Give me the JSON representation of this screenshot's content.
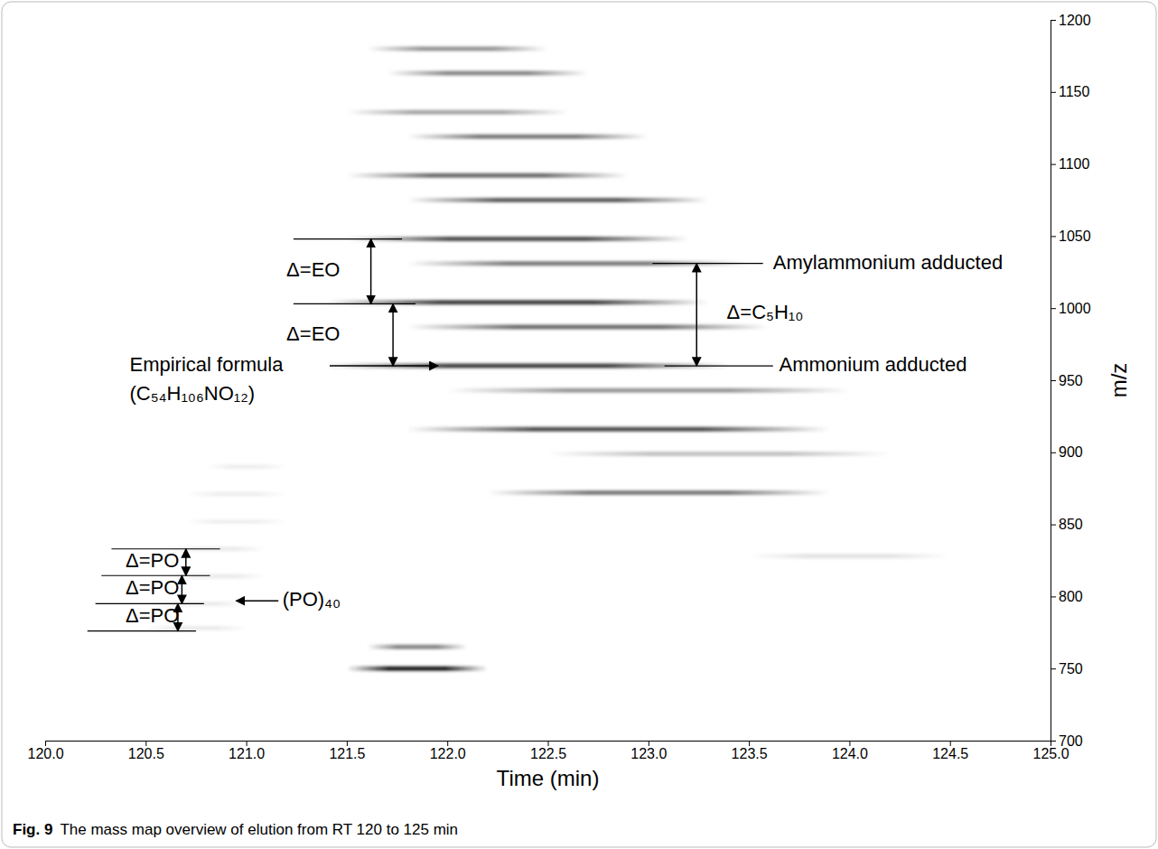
{
  "chart_data": {
    "type": "heatmap",
    "figure_label": "Fig. 9",
    "title": "The mass map overview of elution from RT 120 to 125 min",
    "xlabel": "Time (min)",
    "ylabel": "m/z",
    "xlim": [
      120,
      125
    ],
    "ylim": [
      700,
      1200
    ],
    "xticks": [
      {
        "value": 120,
        "label": "120.0"
      },
      {
        "value": 120.5,
        "label": "120.5"
      },
      {
        "value": 121,
        "label": "121.0"
      },
      {
        "value": 121.5,
        "label": "121.5"
      },
      {
        "value": 122,
        "label": "122.0"
      },
      {
        "value": 122.5,
        "label": "122.5"
      },
      {
        "value": 123,
        "label": "123.0"
      },
      {
        "value": 123.5,
        "label": "123.5"
      },
      {
        "value": 124,
        "label": "124.0"
      },
      {
        "value": 124.5,
        "label": "124.5"
      },
      {
        "value": 125,
        "label": "125.0"
      }
    ],
    "yticks": [
      700,
      750,
      800,
      850,
      900,
      950,
      1000,
      1050,
      1100,
      1150,
      1200
    ],
    "intensity_lim": [
      0,
      1
    ],
    "streaks": {
      "mz": [
        1180,
        1163,
        1136,
        1119,
        1092,
        1075,
        1048,
        1031,
        1004,
        987,
        960,
        943,
        916,
        899,
        872,
        828,
        765,
        750,
        778,
        795,
        814,
        833,
        852,
        871,
        890
      ],
      "rt_start": [
        121.6,
        121.7,
        121.5,
        121.8,
        121.5,
        121.8,
        121.5,
        121.8,
        121.4,
        121.8,
        121.4,
        122.0,
        121.8,
        122.5,
        122.2,
        123.5,
        121.6,
        121.5,
        120.5,
        120.5,
        120.6,
        120.6,
        120.7,
        120.7,
        120.8
      ],
      "rt_end": [
        122.5,
        122.7,
        122.6,
        123.0,
        122.9,
        123.3,
        123.2,
        123.5,
        123.3,
        123.6,
        123.4,
        124.0,
        123.9,
        124.2,
        123.9,
        124.5,
        122.1,
        122.2,
        121.0,
        121.0,
        121.1,
        121.1,
        121.2,
        121.2,
        121.2
      ],
      "intensity": [
        0.5,
        0.55,
        0.45,
        0.6,
        0.65,
        0.7,
        0.75,
        0.6,
        0.8,
        0.65,
        0.8,
        0.5,
        0.75,
        0.35,
        0.6,
        0.2,
        0.55,
        0.9,
        0.15,
        0.15,
        0.15,
        0.15,
        0.12,
        0.12,
        0.12
      ]
    },
    "reference_lines": [
      {
        "x": [
          121.235,
          121.775
        ],
        "y": 1048
      },
      {
        "x": [
          121.235,
          121.842
        ],
        "y": 1003
      },
      {
        "x": [
          123.02,
          123.57
        ],
        "y": 1031
      },
      {
        "x": [
          123.08,
          123.62
        ],
        "y": 960
      },
      {
        "x": [
          120.33,
          120.87
        ],
        "y": 833
      },
      {
        "x": [
          120.28,
          120.82
        ],
        "y": 814.5
      },
      {
        "x": [
          120.25,
          120.79
        ],
        "y": 795
      },
      {
        "x": [
          120.21,
          120.75
        ],
        "y": 776
      }
    ],
    "arrows": [
      {
        "x": 121.62,
        "y": [
          1048,
          1003
        ]
      },
      {
        "x": 121.73,
        "y": [
          1003,
          960
        ]
      },
      {
        "x": 123.24,
        "y": [
          1031,
          960
        ]
      },
      {
        "x": 120.7,
        "y": [
          833,
          814.5
        ]
      },
      {
        "x": 120.68,
        "y": [
          814.5,
          795
        ]
      },
      {
        "x": 120.66,
        "y": [
          795,
          776
        ]
      }
    ],
    "pointers": [
      {
        "x": [
          121.415,
          121.954
        ],
        "y": 960
      },
      {
        "x": [
          121.16,
          120.95
        ],
        "y": 797
      }
    ],
    "annotations": [
      {
        "text": "Δ=EO",
        "x": 121.2,
        "y": 1026
      },
      {
        "text": "Δ=EO",
        "x": 121.2,
        "y": 981
      },
      {
        "text": "Empirical formula",
        "x": 120.42,
        "y": 960
      },
      {
        "text": "(C₅₄H₁₀₆NO₁₂)",
        "x": 120.42,
        "y": 940
      },
      {
        "text": "Amylammonium adducted",
        "x": 123.62,
        "y": 1031
      },
      {
        "text": "Ammonium adducted",
        "x": 123.65,
        "y": 960
      },
      {
        "text": "Δ=C₅H₁₀",
        "x": 123.39,
        "y": 996
      },
      {
        "text": "Δ=PO",
        "x": 120.4,
        "y": 824
      },
      {
        "text": "Δ=PO",
        "x": 120.4,
        "y": 805
      },
      {
        "text": "Δ=PO",
        "x": 120.4,
        "y": 786
      },
      {
        "text": "(PO)₄₀",
        "x": 121.18,
        "y": 797
      }
    ]
  }
}
